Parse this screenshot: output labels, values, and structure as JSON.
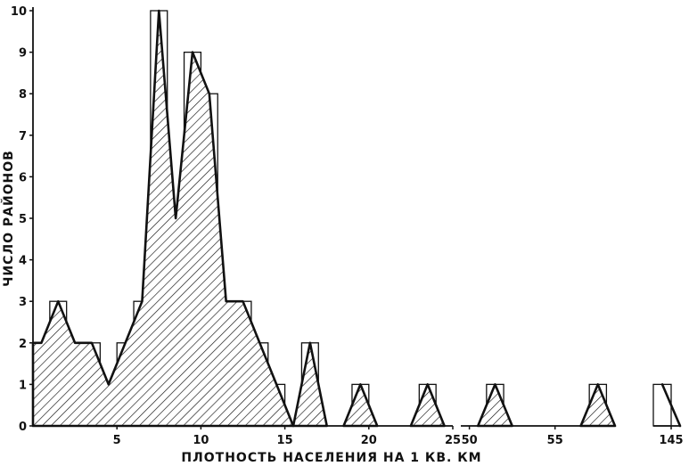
{
  "chart_data": {
    "type": "bar",
    "xlabel": "ПЛОТНОСТЬ НАСЕЛЕНИЯ НА 1 КВ. КМ",
    "ylabel": "ЧИСЛО РАЙОНОВ",
    "ylim": [
      0,
      10
    ],
    "y_ticks": [
      "0",
      "1",
      "2",
      "3",
      "4",
      "5",
      "6",
      "7",
      "8",
      "9",
      "10"
    ],
    "x_axis_segments": [
      {
        "range": [
          0,
          25
        ],
        "ticks": [
          "5",
          "10",
          "15",
          "20",
          "25"
        ]
      },
      {
        "range": [
          49.5,
          58.5
        ],
        "ticks": [
          "50",
          "55"
        ]
      },
      {
        "range": [
          144,
          145.5
        ],
        "ticks": [
          "145"
        ]
      }
    ],
    "series": [
      {
        "values": [
          {
            "x": 0.5,
            "y": 2
          },
          {
            "x": 1.5,
            "y": 3
          },
          {
            "x": 2.5,
            "y": 2
          },
          {
            "x": 3.5,
            "y": 2
          },
          {
            "x": 4.5,
            "y": 1
          },
          {
            "x": 5.5,
            "y": 2
          },
          {
            "x": 6.5,
            "y": 3
          },
          {
            "x": 7.5,
            "y": 10
          },
          {
            "x": 8.5,
            "y": 5
          },
          {
            "x": 9.5,
            "y": 9
          },
          {
            "x": 10.5,
            "y": 8
          },
          {
            "x": 11.5,
            "y": 3
          },
          {
            "x": 12.5,
            "y": 3
          },
          {
            "x": 13.5,
            "y": 2
          },
          {
            "x": 14.5,
            "y": 1
          },
          {
            "x": 16.5,
            "y": 2
          },
          {
            "x": 19.5,
            "y": 1
          },
          {
            "x": 23.5,
            "y": 1
          },
          {
            "x": 51.5,
            "y": 1
          },
          {
            "x": 57.5,
            "y": 1
          },
          {
            "x": 144.5,
            "y": 1
          }
        ]
      }
    ],
    "grid": false,
    "legend": "none"
  }
}
